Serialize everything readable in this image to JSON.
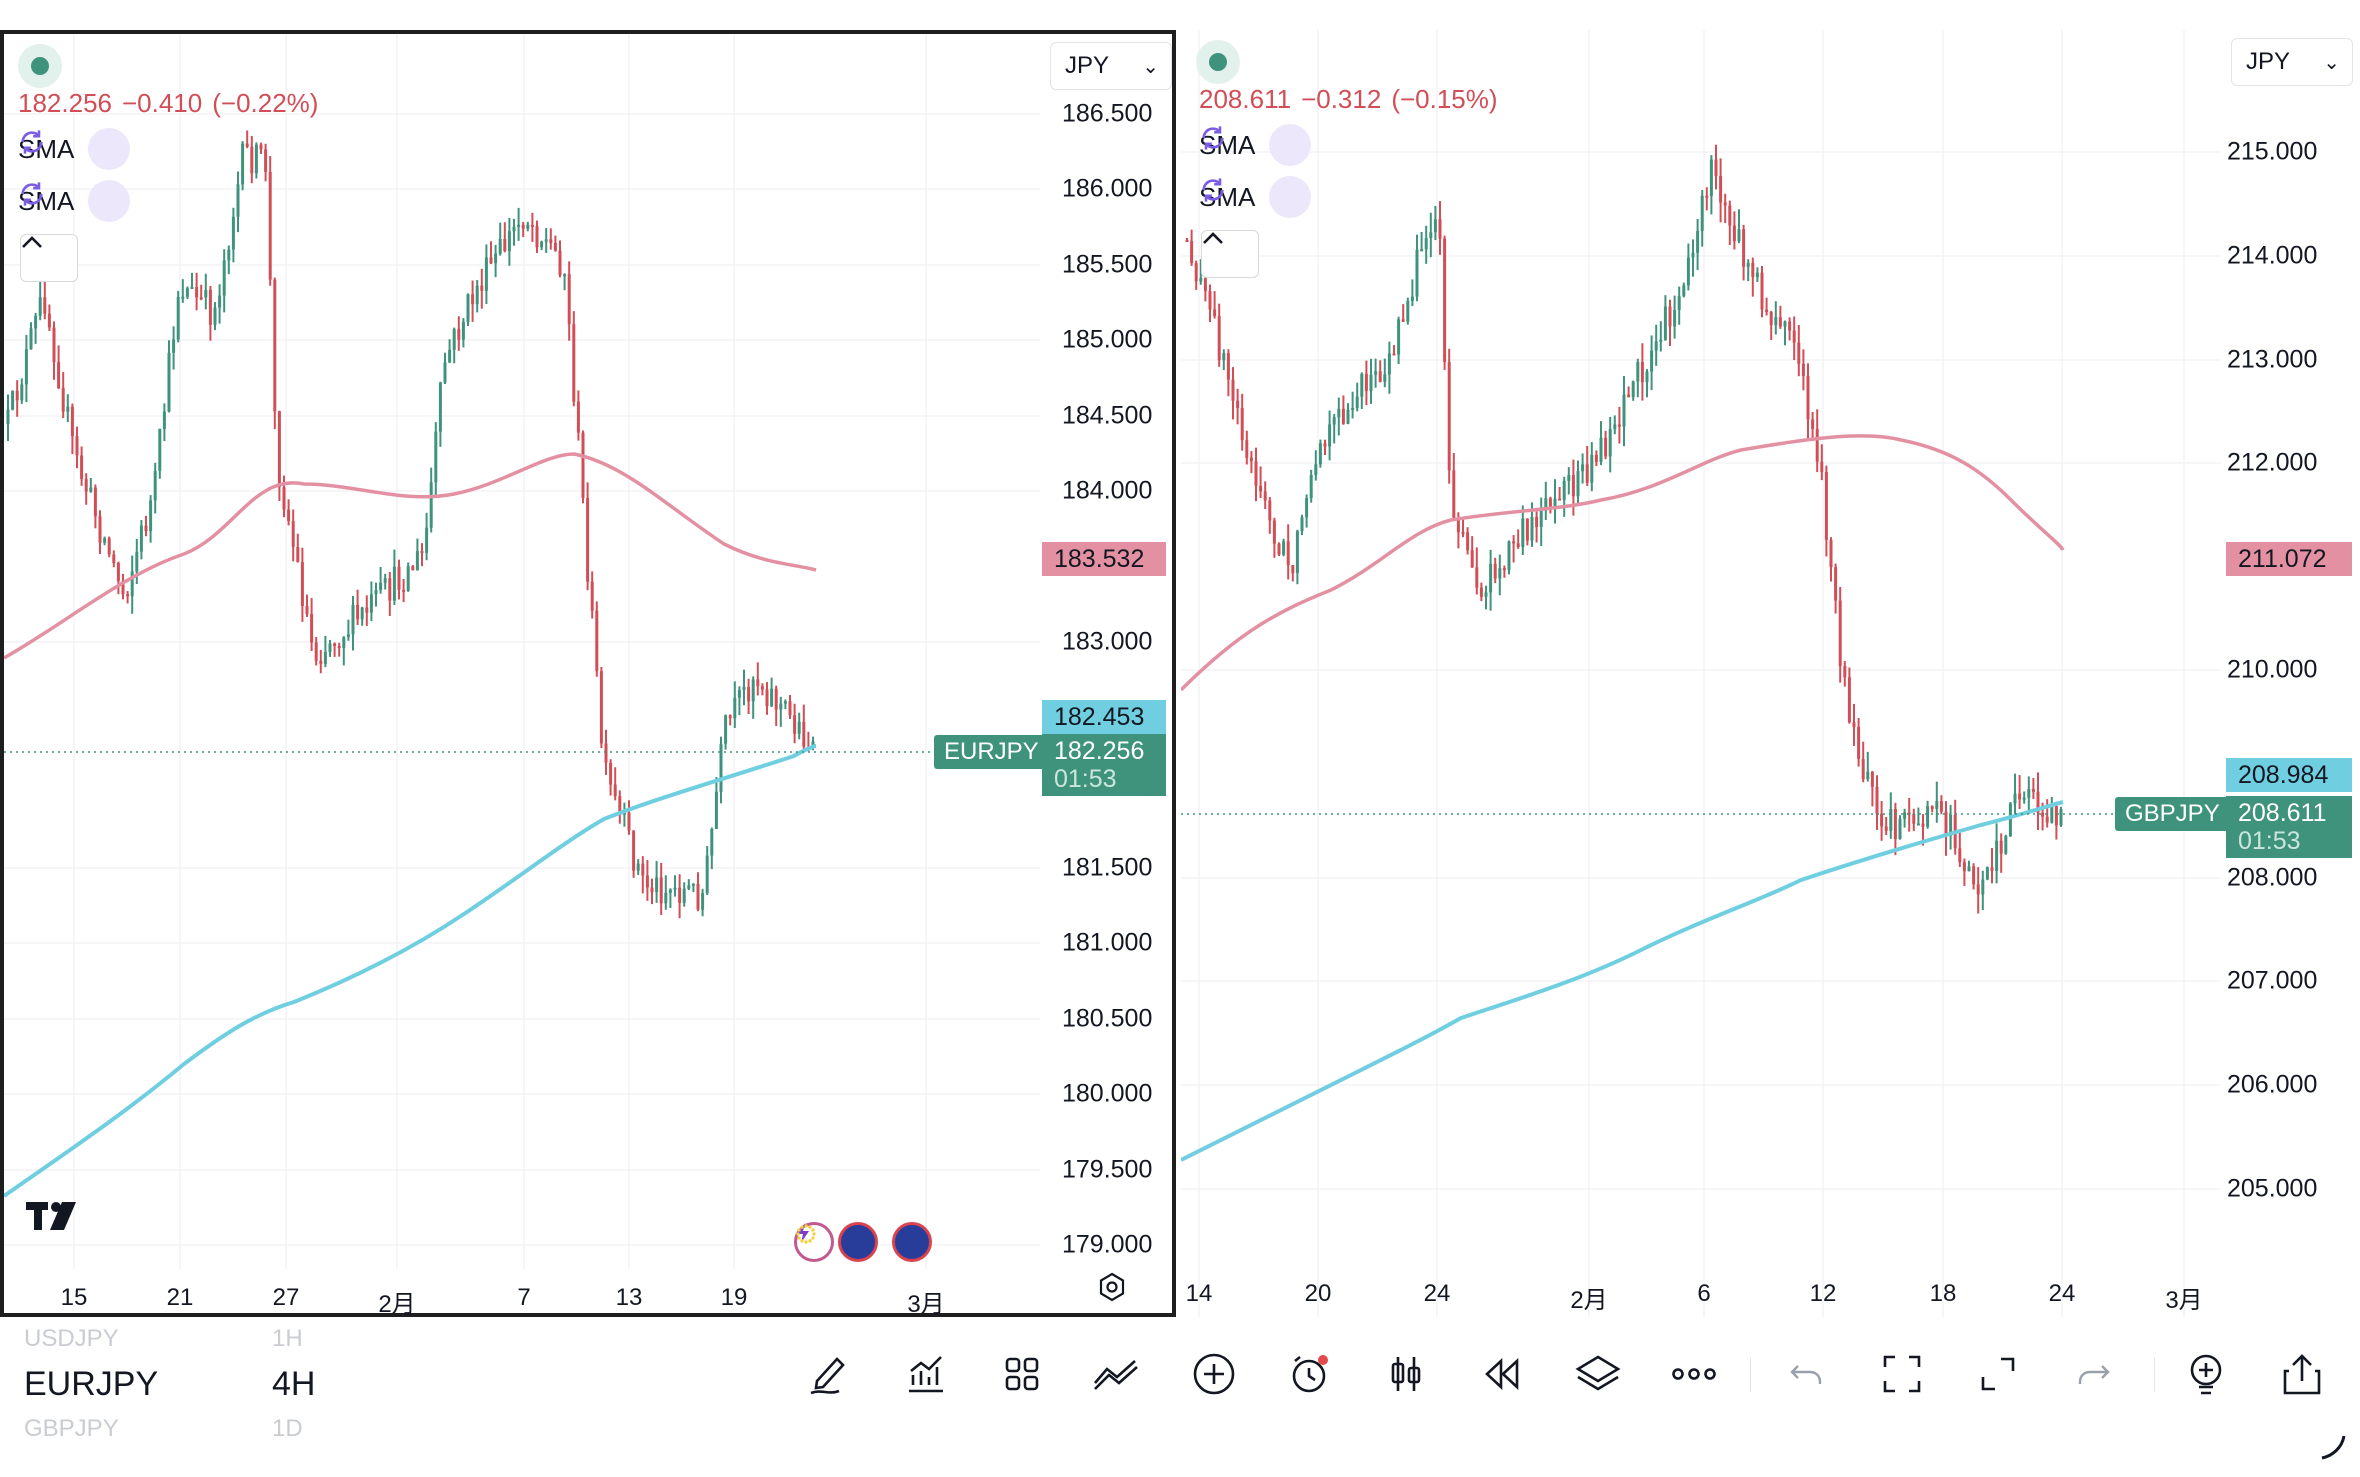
{
  "left_chart": {
    "price": "182.256",
    "change": "−0.410",
    "change_pct": "(−0.22%)",
    "indicators": [
      "SMA",
      "SMA"
    ],
    "currency": "JPY",
    "yaxis": [
      "186.500",
      "186.000",
      "185.500",
      "185.000",
      "184.500",
      "184.000",
      "183.000",
      "181.500",
      "181.000",
      "180.500",
      "180.000",
      "179.500",
      "179.000"
    ],
    "sma_slow_value": "183.532",
    "sma_fast_value": "182.453",
    "current_price": "182.256",
    "countdown": "01:53",
    "symbol_tag": "EURJPY",
    "xaxis": [
      "15",
      "21",
      "27",
      "2月",
      "7",
      "13",
      "19",
      "3月"
    ]
  },
  "right_chart": {
    "price": "208.611",
    "change": "−0.312",
    "change_pct": "(−0.15%)",
    "indicators": [
      "SMA",
      "SMA"
    ],
    "currency": "JPY",
    "yaxis": [
      "215.000",
      "214.000",
      "213.000",
      "212.000",
      "210.000",
      "208.000",
      "207.000",
      "206.000",
      "205.000"
    ],
    "sma_slow_value": "211.072",
    "sma_fast_value": "208.984",
    "current_price": "208.611",
    "countdown": "01:53",
    "symbol_tag": "GBPJPY",
    "xaxis": [
      "14",
      "20",
      "24",
      "2月",
      "6",
      "12",
      "18",
      "24",
      "3月"
    ]
  },
  "toolbar": {
    "symbols": [
      {
        "symbol": "USDJPY",
        "interval": "1H"
      },
      {
        "symbol": "EURJPY",
        "interval": "4H"
      },
      {
        "symbol": "GBPJPY",
        "interval": "1D"
      }
    ],
    "icons": [
      "drawing-tools-icon",
      "indicators-icon",
      "layouts-icon",
      "compare-icon",
      "add-icon",
      "alert-icon",
      "bar-style-icon",
      "replay-icon",
      "layers-icon",
      "more-icon",
      "undo-icon",
      "fullscreen-icon",
      "expand-icon",
      "redo-icon",
      "ideas-icon",
      "share-icon"
    ]
  },
  "colors": {
    "up": "#3f937d",
    "down": "#d14e57",
    "sma_slow": "#e391a2",
    "sma_fast": "#6fcfe0"
  }
}
